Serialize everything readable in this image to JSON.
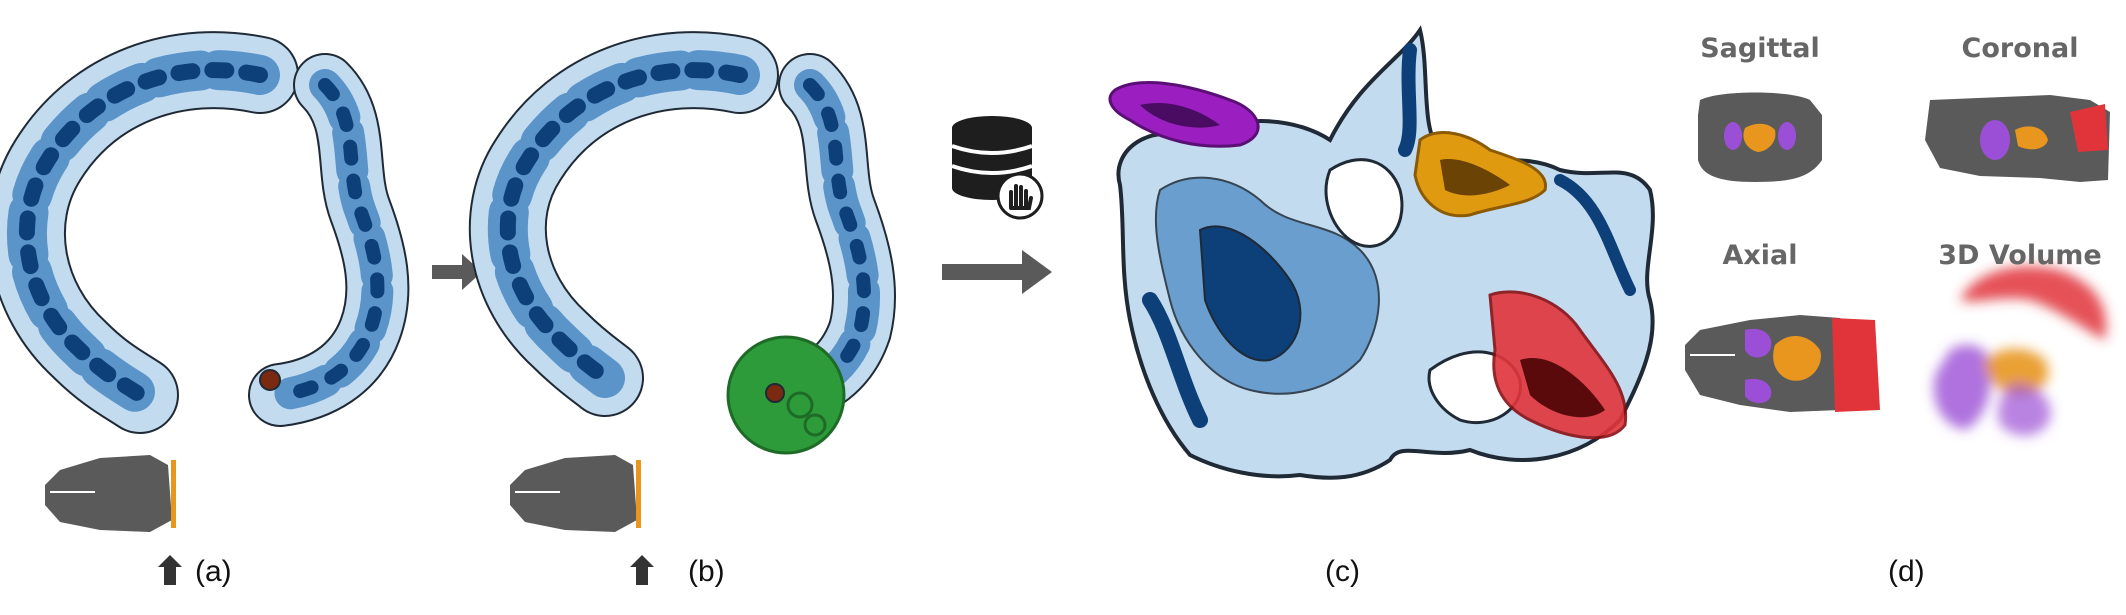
{
  "panels": {
    "a": {
      "label": "(a)"
    },
    "b": {
      "label": "(b)"
    },
    "c": {
      "label": "(c)"
    },
    "d": {
      "label": "(d)"
    }
  },
  "views": {
    "sagittal": "Sagittal",
    "coronal": "Coronal",
    "axial": "Axial",
    "volume": "3D Volume"
  },
  "colors": {
    "density_light": "#c3dbef",
    "density_mid": "#5b94c9",
    "density_dark": "#0d3f78",
    "outline": "#1f2a36",
    "selection_green": "#2e9b3a",
    "seed_brown": "#7a2a10",
    "region_purple": "#9b1fc0",
    "region_orange": "#e09a10",
    "region_red": "#e0343a",
    "brain_gray": "#5a5a5a",
    "slice_marker": "#e8961e",
    "arrow_gray": "#5a5a5a"
  },
  "icons": [
    "database-icon",
    "hand-icon",
    "arrow-right-icon",
    "arrow-up-icon"
  ]
}
